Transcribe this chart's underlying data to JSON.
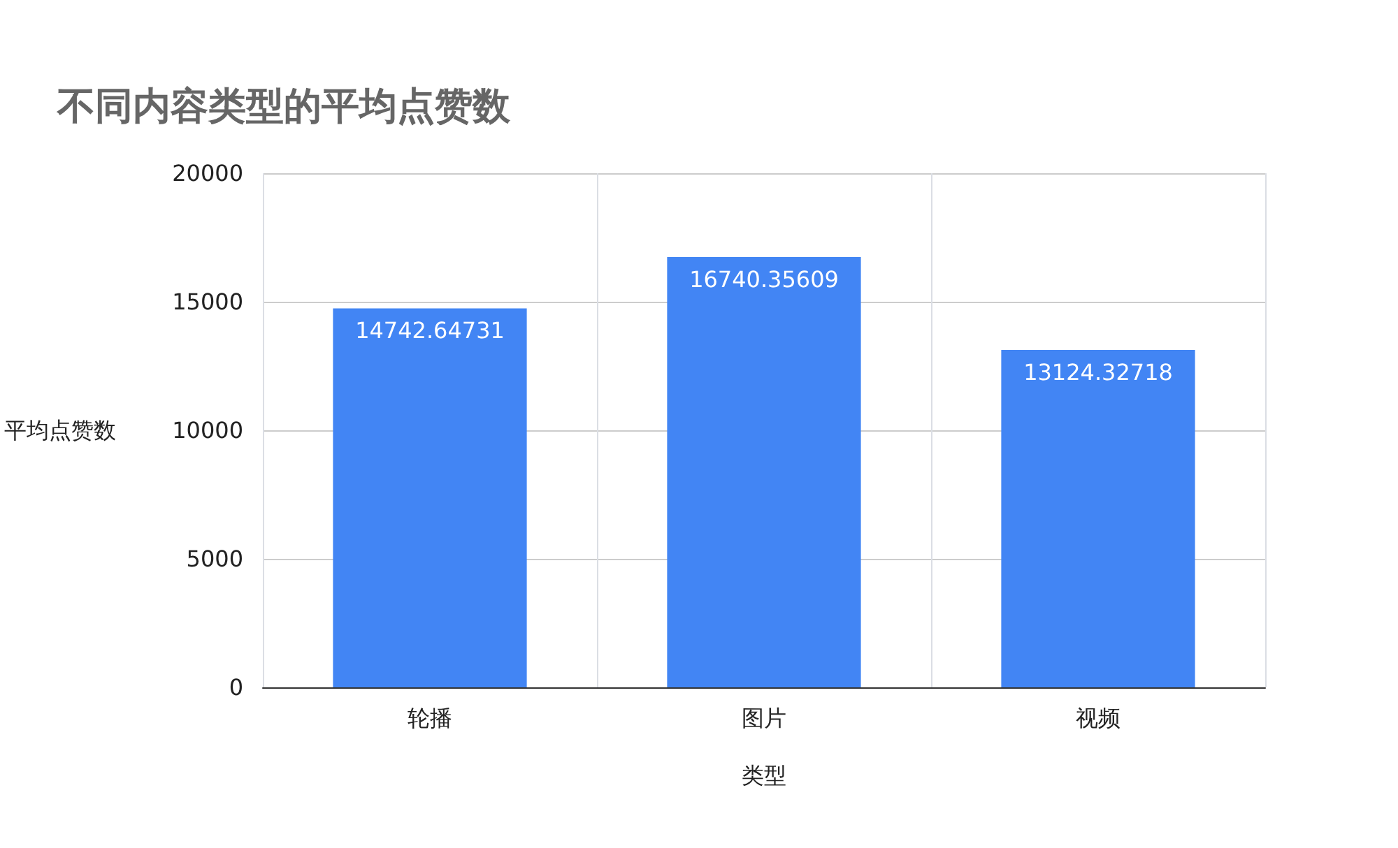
{
  "chart_data": {
    "type": "bar",
    "title": "不同内容类型的平均点赞数",
    "xlabel": "类型",
    "ylabel": "平均点赞数",
    "categories": [
      "轮播",
      "图片",
      "视频"
    ],
    "values": [
      14742.64731,
      16740.35609,
      13124.32718
    ],
    "color": "#4285f4",
    "ylim": [
      0,
      20000
    ],
    "yticks": [
      0,
      5000,
      10000,
      15000,
      20000
    ],
    "grid": true,
    "data_labels": true
  }
}
